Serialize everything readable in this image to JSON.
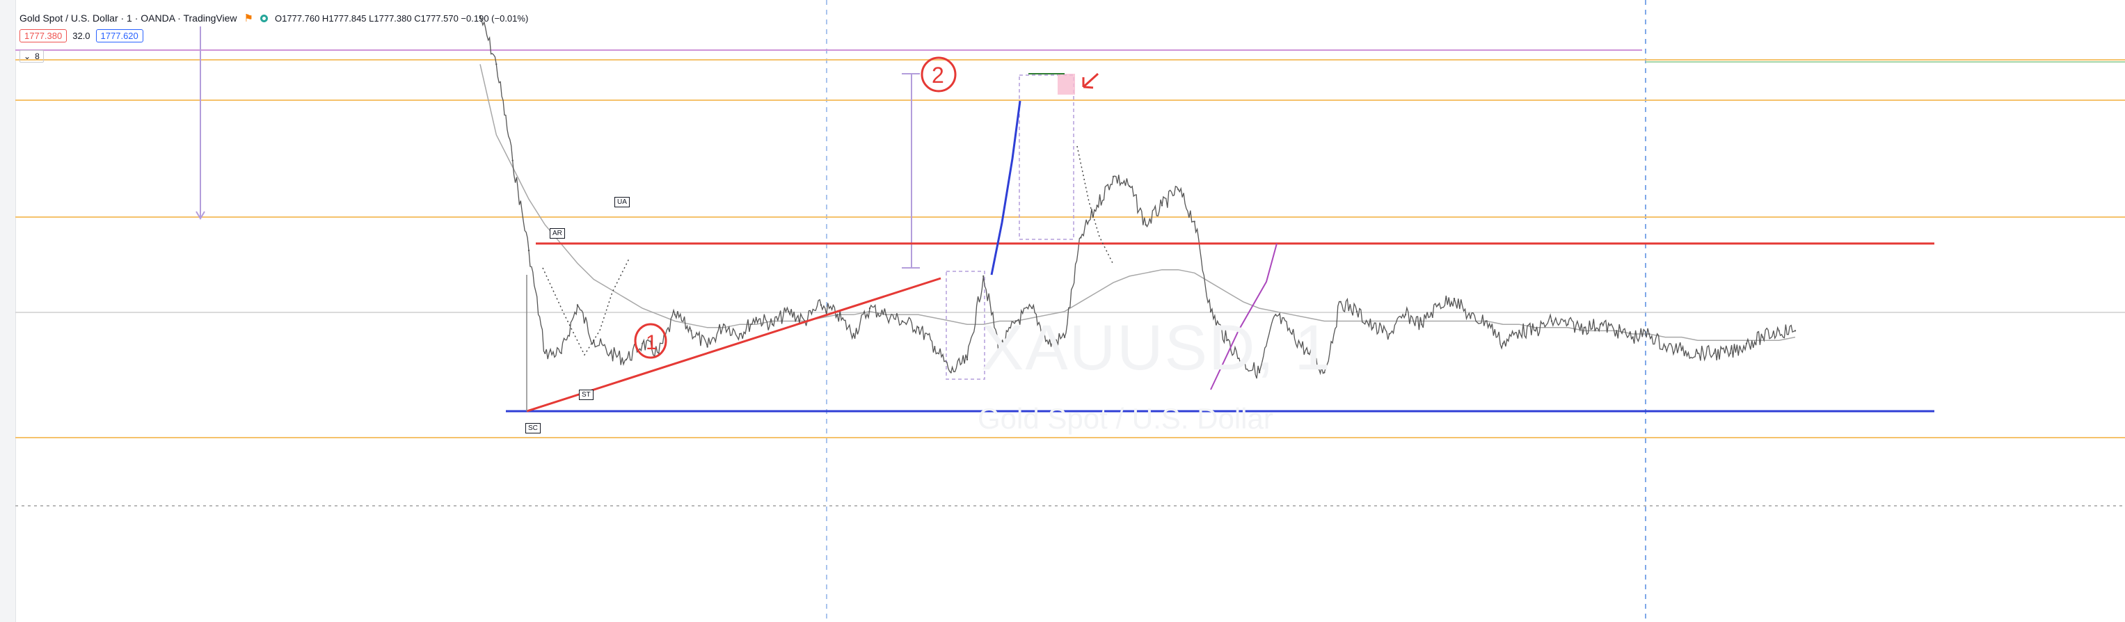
{
  "header": {
    "symbol_title": "Gold Spot / U.S. Dollar · 1 · OANDA · TradingView",
    "ohlc": "O1777.760 H1777.845 L1777.380 C1777.570 −0.190 (−0.01%)",
    "bid_price": "1777.380",
    "spread": "32.0",
    "ask_price": "1777.620",
    "indicator_toggle": "8"
  },
  "watermark": {
    "symbol": "XAUUSD, 1",
    "description": "Gold Spot / U.S. Dollar"
  },
  "wyckoff_labels": {
    "ar": "AR",
    "ua": "UA",
    "sc": "SC",
    "st": "ST"
  },
  "annotations": {
    "circle_1": "1",
    "circle_2": "2"
  },
  "colors": {
    "price": "#555555",
    "ma": "#a8a8a8",
    "resistance": "#e53935",
    "support": "#2f3fd6",
    "horizontal_levels": "#f5c26b",
    "session_divider": "#7fa8e8",
    "measure": "#b39ddb",
    "handwriting": "#e53935"
  },
  "chart_data": {
    "type": "line",
    "symbol": "XAUUSD",
    "timeframe": "1",
    "series": [
      {
        "name": "",
        "style": "price",
        "values": [
          1805,
          1790,
          1760,
          1732,
          1700,
          1700,
          1715,
          1704,
          1700,
          1698,
          1703,
          1700,
          1712,
          1707,
          1702,
          1709,
          1706,
          1711,
          1709,
          1713,
          1710,
          1715,
          1712,
          1706,
          1714,
          1712,
          1710,
          1708,
          1702,
          1694,
          1698,
          1724,
          1701,
          1710,
          1714,
          1703,
          1705,
          1736,
          1746,
          1755,
          1752,
          1740,
          1746,
          1751,
          1741,
          1713,
          1704,
          1697,
          1694,
          1712,
          1706,
          1700,
          1694,
          1716,
          1713,
          1708,
          1706,
          1712,
          1709,
          1715,
          1717,
          1711,
          1710,
          1703,
          1707,
          1707,
          1710,
          1709,
          1708,
          1709,
          1707,
          1705,
          1706,
          1702,
          1701,
          1700,
          1700,
          1700,
          1703,
          1705,
          1707,
          1707
        ]
      },
      {
        "name": "",
        "style": "moving-average",
        "values": [
          1790,
          1768,
          1758,
          1748,
          1740,
          1734,
          1728,
          1723,
          1720,
          1717,
          1714,
          1712,
          1710,
          1709,
          1708,
          1708,
          1709,
          1709,
          1710,
          1710,
          1710,
          1711,
          1712,
          1712,
          1713,
          1712,
          1712,
          1712,
          1711,
          1710,
          1709,
          1709,
          1710,
          1710,
          1711,
          1712,
          1713,
          1716,
          1719,
          1722,
          1724,
          1725,
          1726,
          1726,
          1725,
          1722,
          1719,
          1716,
          1714,
          1713,
          1712,
          1711,
          1710,
          1710,
          1710,
          1710,
          1710,
          1710,
          1710,
          1710,
          1710,
          1710,
          1710,
          1709,
          1709,
          1708,
          1708,
          1708,
          1707,
          1707,
          1707,
          1706,
          1706,
          1705,
          1705,
          1704,
          1704,
          1704,
          1704,
          1704,
          1704,
          1705
        ]
      }
    ],
    "ylim": [
      1680,
      1810
    ],
    "grid": false,
    "legend": "none"
  }
}
